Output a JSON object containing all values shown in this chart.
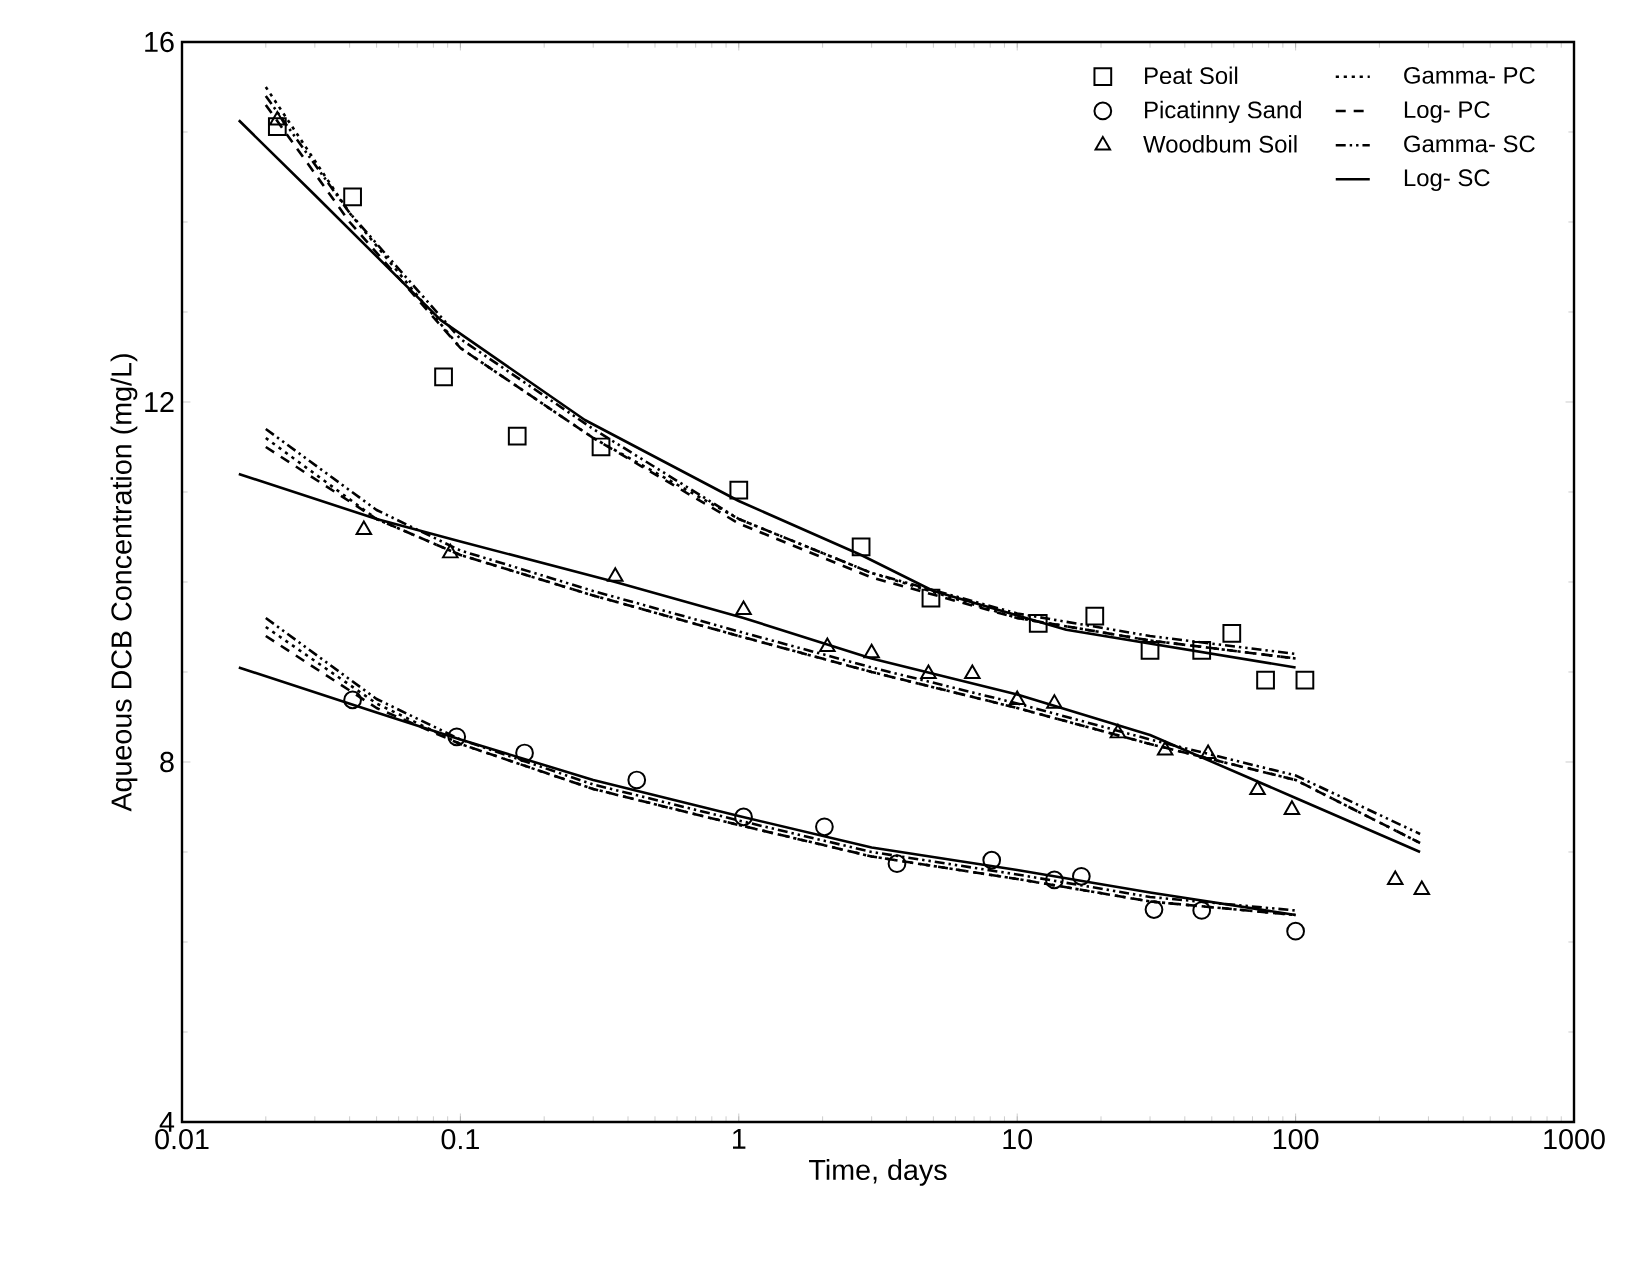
{
  "chart_data": {
    "type": "scatter",
    "xlabel": "Time, days",
    "ylabel": "Aqueous DCB Concentration (mg/L)",
    "log": "x",
    "xlim": [
      0.01,
      1000
    ],
    "xticks": [
      0.01,
      0.1,
      1,
      10,
      100,
      1000
    ],
    "ylim": [
      4,
      16
    ],
    "yticks": [
      4,
      8,
      12,
      16
    ],
    "grid": false,
    "legend": "top right",
    "series": [
      {
        "name": "Peat Soil",
        "type": "scatter",
        "marker": "square",
        "color": "#000000",
        "x": [
          0.022,
          0.041,
          0.087,
          0.16,
          0.32,
          1.0,
          2.75,
          4.9,
          11.9,
          19,
          30,
          46,
          59,
          78,
          108
        ],
        "values": [
          15.06,
          14.28,
          12.28,
          11.62,
          11.5,
          11.02,
          10.39,
          9.82,
          9.54,
          9.62,
          9.24,
          9.24,
          9.43,
          8.91,
          8.91
        ]
      },
      {
        "name": "Picatinny Sand",
        "type": "scatter",
        "marker": "circle",
        "color": "#000000",
        "x": [
          0.041,
          0.097,
          0.17,
          0.43,
          1.04,
          2.03,
          3.7,
          8.1,
          13.6,
          17,
          31,
          46,
          100
        ],
        "values": [
          8.69,
          8.28,
          8.1,
          7.8,
          7.39,
          7.28,
          6.87,
          6.91,
          6.69,
          6.73,
          6.36,
          6.35,
          6.12
        ]
      },
      {
        "name": "Woodbum Soil",
        "type": "scatter",
        "marker": "triangle",
        "color": "#000000",
        "x": [
          0.022,
          0.045,
          0.092,
          0.36,
          1.04,
          2.08,
          3.0,
          4.8,
          6.9,
          10,
          13.6,
          23,
          34,
          48.5,
          73,
          97,
          228,
          284
        ],
        "values": [
          15.13,
          10.58,
          10.32,
          10.06,
          9.69,
          9.28,
          9.21,
          8.98,
          8.98,
          8.69,
          8.65,
          8.32,
          8.13,
          8.09,
          7.69,
          7.47,
          6.69,
          6.58
        ]
      },
      {
        "name": "Gamma- PC",
        "type": "line",
        "line_style": "dotted",
        "marker": "none",
        "color": "#000000",
        "x": [
          0.02,
          0.04,
          0.1,
          0.3,
          1,
          3,
          10,
          30,
          100
        ],
        "values": [
          15.5,
          14.1,
          12.6,
          11.6,
          10.7,
          10.1,
          9.6,
          9.35,
          9.15
        ]
      },
      {
        "name": "Log- PC",
        "type": "line",
        "line_style": "dashed",
        "marker": "none",
        "color": "#000000",
        "x": [
          0.02,
          0.04,
          0.1,
          0.3,
          1,
          3,
          10,
          30,
          100
        ],
        "values": [
          15.3,
          14.0,
          12.6,
          11.6,
          10.65,
          10.05,
          9.6,
          9.35,
          9.15
        ]
      },
      {
        "name": "Gamma- SC",
        "type": "line",
        "line_style": "dashdotdotted",
        "marker": "none",
        "color": "#000000",
        "x": [
          0.02,
          0.04,
          0.1,
          0.3,
          1,
          3,
          10,
          30,
          100
        ],
        "values": [
          15.4,
          14.1,
          12.7,
          11.7,
          10.7,
          10.1,
          9.65,
          9.4,
          9.2
        ]
      },
      {
        "name": "Log- SC",
        "type": "line",
        "line_style": "solid",
        "marker": "none",
        "color": "#000000",
        "x": [
          0.016,
          0.03,
          0.085,
          0.28,
          1,
          2.75,
          5,
          15,
          100
        ],
        "values": [
          15.13,
          14.3,
          12.91,
          11.8,
          10.9,
          10.3,
          9.9,
          9.47,
          9.05
        ]
      },
      {
        "type": "line",
        "line_style": "dotted",
        "marker": "none",
        "color": "#000000",
        "x": [
          0.02,
          0.05,
          0.1,
          0.3,
          1,
          3,
          10,
          30,
          100,
          280
        ],
        "values": [
          11.6,
          10.7,
          10.3,
          9.85,
          9.4,
          9.0,
          8.6,
          8.2,
          7.8,
          7.1
        ]
      },
      {
        "type": "line",
        "line_style": "dashed",
        "marker": "none",
        "color": "#000000",
        "x": [
          0.02,
          0.05,
          0.1,
          0.3,
          1,
          3,
          10,
          30,
          100,
          280
        ],
        "values": [
          11.5,
          10.7,
          10.3,
          9.85,
          9.4,
          9.0,
          8.6,
          8.2,
          7.8,
          7.1
        ]
      },
      {
        "type": "line",
        "line_style": "dashdotdotted",
        "marker": "none",
        "color": "#000000",
        "x": [
          0.02,
          0.05,
          0.1,
          0.3,
          1,
          3,
          10,
          30,
          100,
          280
        ],
        "values": [
          11.7,
          10.8,
          10.35,
          9.9,
          9.45,
          9.05,
          8.65,
          8.25,
          7.85,
          7.2
        ]
      },
      {
        "type": "line",
        "line_style": "solid",
        "marker": "none",
        "color": "#000000",
        "x": [
          0.016,
          0.05,
          0.1,
          0.36,
          1.04,
          3,
          10,
          30,
          100,
          280
        ],
        "values": [
          11.2,
          10.7,
          10.45,
          10.0,
          9.6,
          9.15,
          8.75,
          8.3,
          7.6,
          7.0
        ]
      },
      {
        "type": "line",
        "line_style": "dotted",
        "marker": "none",
        "color": "#000000",
        "x": [
          0.02,
          0.05,
          0.1,
          0.3,
          1,
          3,
          10,
          30,
          100
        ],
        "values": [
          9.5,
          8.65,
          8.2,
          7.7,
          7.3,
          6.95,
          6.7,
          6.45,
          6.3
        ]
      },
      {
        "type": "line",
        "line_style": "dashed",
        "marker": "none",
        "color": "#000000",
        "x": [
          0.02,
          0.05,
          0.1,
          0.3,
          1,
          3,
          10,
          30,
          100
        ],
        "values": [
          9.4,
          8.6,
          8.2,
          7.7,
          7.3,
          6.95,
          6.7,
          6.45,
          6.3
        ]
      },
      {
        "type": "line",
        "line_style": "dashdotdotted",
        "marker": "none",
        "color": "#000000",
        "x": [
          0.02,
          0.05,
          0.1,
          0.3,
          1,
          3,
          10,
          30,
          100
        ],
        "values": [
          9.6,
          8.7,
          8.25,
          7.75,
          7.35,
          7.0,
          6.75,
          6.5,
          6.35
        ]
      },
      {
        "type": "line",
        "line_style": "solid",
        "marker": "none",
        "color": "#000000",
        "x": [
          0.016,
          0.05,
          0.1,
          0.3,
          1,
          3,
          10,
          30,
          100
        ],
        "values": [
          9.05,
          8.55,
          8.25,
          7.8,
          7.4,
          7.05,
          6.8,
          6.55,
          6.3
        ]
      }
    ]
  }
}
